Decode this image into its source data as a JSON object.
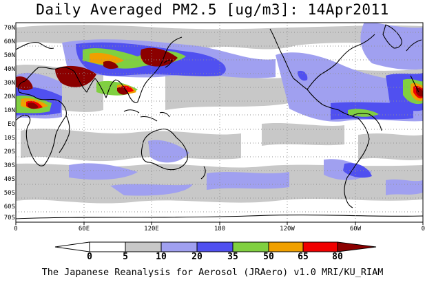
{
  "title": "Daily Averaged PM2.5 [ug/m3]: 14Apr2011",
  "footer": "The Japanese Reanalysis for Aerosol (JRAero) v1.0 MRI/KU_RIAM",
  "lat_labels": [
    "70N",
    "60N",
    "50N",
    "40N",
    "30N",
    "20N",
    "10N",
    "EQ",
    "10S",
    "20S",
    "30S",
    "40S",
    "50S",
    "60S",
    "70S"
  ],
  "lon_labels": [
    "0",
    "60E",
    "120E",
    "180",
    "120W",
    "60W",
    "0"
  ],
  "colorbar": {
    "levels": [
      "0",
      "5",
      "10",
      "20",
      "35",
      "50",
      "65",
      "80"
    ],
    "colors": [
      "#ffffff",
      "#c8c8c8",
      "#a0a0f0",
      "#5050f0",
      "#80d040",
      "#f0a000",
      "#f00000",
      "#8b0000"
    ]
  },
  "map_colors": {
    "ocean": "#ffffff",
    "gray": "#c8c8c8",
    "light_blue": "#a0a0f0",
    "blue": "#5050f0",
    "green": "#80d040",
    "orange": "#f0a000",
    "red": "#f00000",
    "dark_red": "#8b0000",
    "coast": "#000000",
    "grid": "#909090"
  }
}
